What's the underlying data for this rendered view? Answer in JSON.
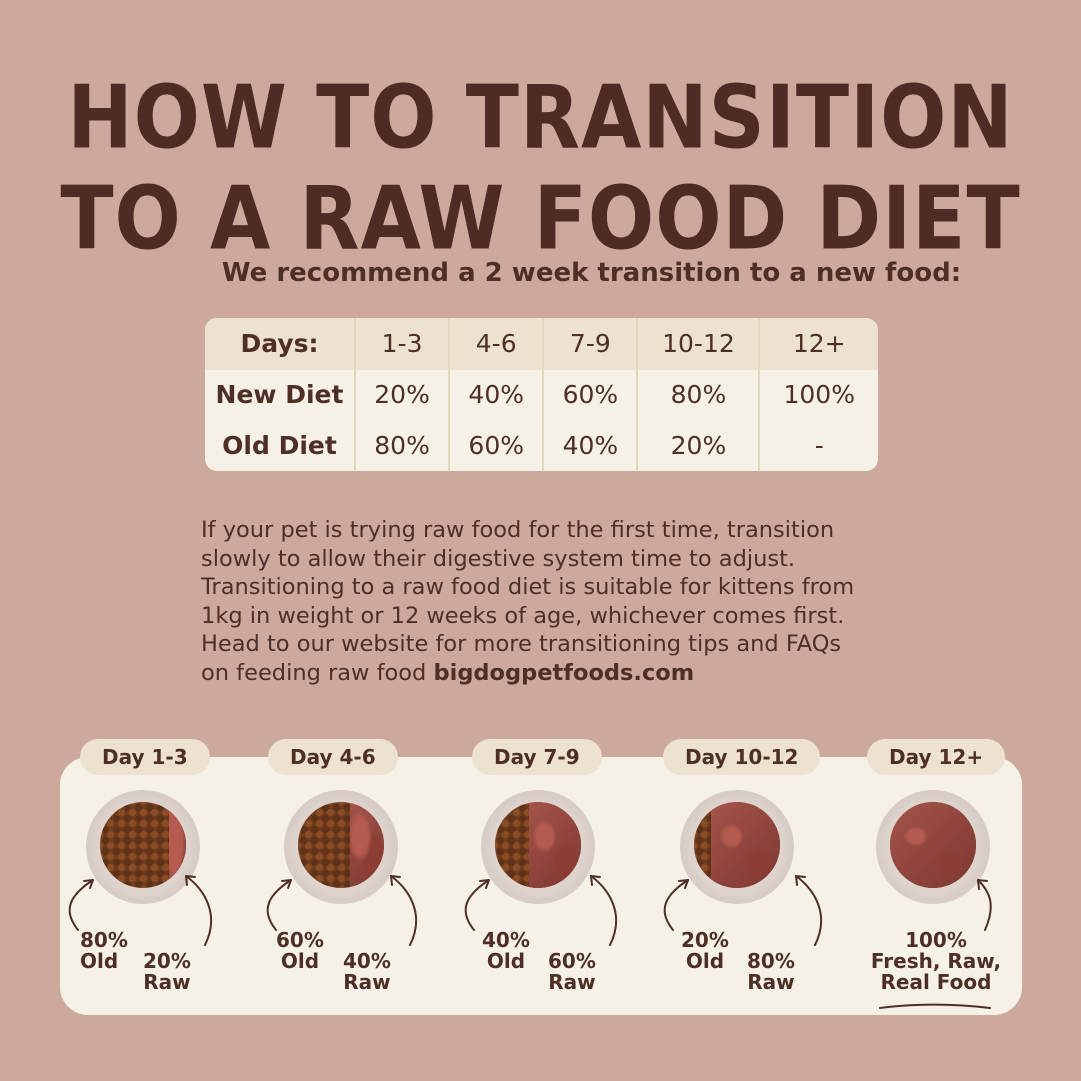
{
  "title": {
    "line1": "HOW TO TRANSITION",
    "line2": "TO A RAW FOOD DIET"
  },
  "subtitle": "We recommend a 2 week transition to a new food:",
  "table": {
    "header": [
      "Days:",
      "1-3",
      "4-6",
      "7-9",
      "10-12",
      "12+"
    ],
    "rows": [
      [
        "New Diet",
        "20%",
        "40%",
        "60%",
        "80%",
        "100%"
      ],
      [
        "Old Diet",
        "80%",
        "60%",
        "40%",
        "20%",
        "-"
      ]
    ]
  },
  "paragraph": {
    "lines": [
      "If your pet is trying raw food for the first time, transition",
      "slowly to allow their digestive system time to adjust.",
      "Transitioning to a raw food diet is suitable for kittens from",
      "1kg in weight or 12 weeks of age, whichever comes first.",
      "Head to our website for more transitioning tips and  FAQs"
    ],
    "last_prefix": "on feeding raw food ",
    "website": "bigdogpetfoods.com"
  },
  "steps": [
    {
      "day": "Day 1-3",
      "old_pct": "80%",
      "old_word": "Old",
      "raw_pct": "20%",
      "raw_word": "Raw",
      "raw_fraction": 0.2
    },
    {
      "day": "Day 4-6",
      "old_pct": "60%",
      "old_word": "Old",
      "raw_pct": "40%",
      "raw_word": "Raw",
      "raw_fraction": 0.4
    },
    {
      "day": "Day 7-9",
      "old_pct": "40%",
      "old_word": "Old",
      "raw_pct": "60%",
      "raw_word": "Raw",
      "raw_fraction": 0.6
    },
    {
      "day": "Day 10-12",
      "old_pct": "20%",
      "old_word": "Old",
      "raw_pct": "80%",
      "raw_word": "Raw",
      "raw_fraction": 0.8
    },
    {
      "day": "Day 12+",
      "final_pct": "100%",
      "final_line1": "Fresh, Raw,",
      "final_line2": "Real Food",
      "raw_fraction": 1.0
    }
  ],
  "colors": {
    "background": "#cda99d",
    "text": "#4e2f28",
    "card": "#f6f1e6",
    "pill": "#ece2cf"
  }
}
